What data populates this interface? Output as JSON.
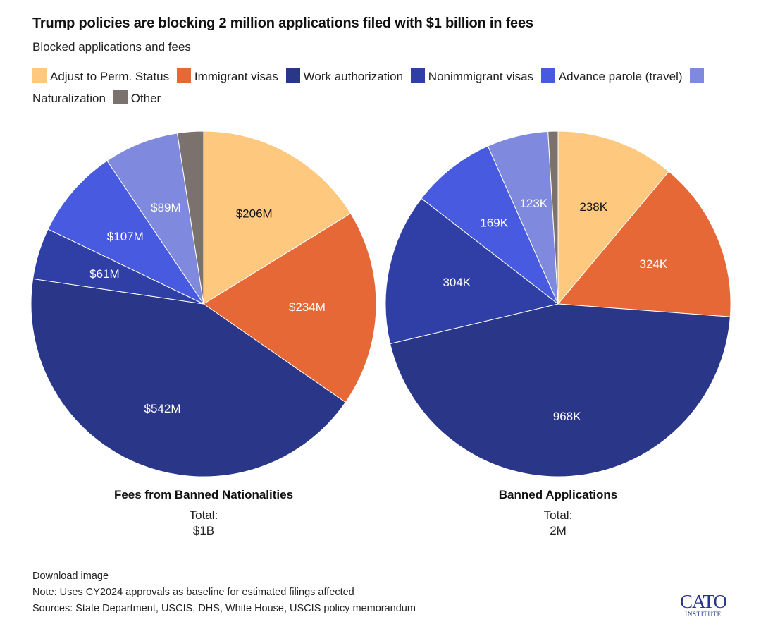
{
  "title": "Trump policies are blocking 2 million applications filed with $1 billion in fees",
  "subtitle": "Blocked applications and fees",
  "legend": [
    {
      "label": "Adjust to Perm. Status",
      "color": "#fec87f"
    },
    {
      "label": "Immigrant visas",
      "color": "#e56836"
    },
    {
      "label": "Work authorization",
      "color": "#2a3788"
    },
    {
      "label": "Nonimmigrant visas",
      "color": "#2f3fa6"
    },
    {
      "label": "Advance parole (travel)",
      "color": "#485be0"
    },
    {
      "label": "Naturalization",
      "color": "#7f8adf"
    },
    {
      "label": "Other",
      "color": "#7b716d"
    }
  ],
  "chart_data": [
    {
      "type": "pie",
      "title": "Fees from Banned Nationalities",
      "total_label": "Total:",
      "total_value": "$1B",
      "start_angle_deg": 0,
      "direction": "clockwise",
      "slices": [
        {
          "category": "Adjust to Perm. Status",
          "value": 206,
          "label": "$206M",
          "color": "#fec87f",
          "text_color": "#111111"
        },
        {
          "category": "Immigrant visas",
          "value": 234,
          "label": "$234M",
          "color": "#e56836",
          "text_color": "#ffffff"
        },
        {
          "category": "Work authorization",
          "value": 542,
          "label": "$542M",
          "color": "#2a3788",
          "text_color": "#ffffff"
        },
        {
          "category": "Nonimmigrant visas",
          "value": 61,
          "label": "$61M",
          "color": "#2f3fa6",
          "text_color": "#ffffff"
        },
        {
          "category": "Advance parole (travel)",
          "value": 107,
          "label": "$107M",
          "color": "#485be0",
          "text_color": "#ffffff"
        },
        {
          "category": "Naturalization",
          "value": 89,
          "label": "$89M",
          "color": "#7f8adf",
          "text_color": "#ffffff"
        },
        {
          "category": "Other",
          "value": 31,
          "label": "",
          "color": "#7b716d",
          "text_color": "#ffffff"
        }
      ]
    },
    {
      "type": "pie",
      "title": "Banned Applications",
      "total_label": "Total:",
      "total_value": "2M",
      "start_angle_deg": 0,
      "direction": "clockwise",
      "slices": [
        {
          "category": "Adjust to Perm. Status",
          "value": 238,
          "label": "238K",
          "color": "#fec87f",
          "text_color": "#111111"
        },
        {
          "category": "Immigrant visas",
          "value": 324,
          "label": "324K",
          "color": "#e56836",
          "text_color": "#ffffff"
        },
        {
          "category": "Work authorization",
          "value": 968,
          "label": "968K",
          "color": "#2a3788",
          "text_color": "#ffffff"
        },
        {
          "category": "Nonimmigrant visas",
          "value": 304,
          "label": "304K",
          "color": "#2f3fa6",
          "text_color": "#ffffff"
        },
        {
          "category": "Advance parole (travel)",
          "value": 169,
          "label": "169K",
          "color": "#485be0",
          "text_color": "#ffffff"
        },
        {
          "category": "Naturalization",
          "value": 123,
          "label": "123K",
          "color": "#7f8adf",
          "text_color": "#ffffff"
        },
        {
          "category": "Other",
          "value": 20,
          "label": "",
          "color": "#7b716d",
          "text_color": "#ffffff"
        }
      ]
    }
  ],
  "footer": {
    "download_link": "Download image",
    "note": "Note: Uses CY2024 approvals as baseline for estimated filings affected",
    "sources": "Sources: State Department, USCIS, DHS, White House, USCIS policy memorandum"
  },
  "logo": {
    "text": "CATO",
    "subtext": "INSTITUTE"
  }
}
